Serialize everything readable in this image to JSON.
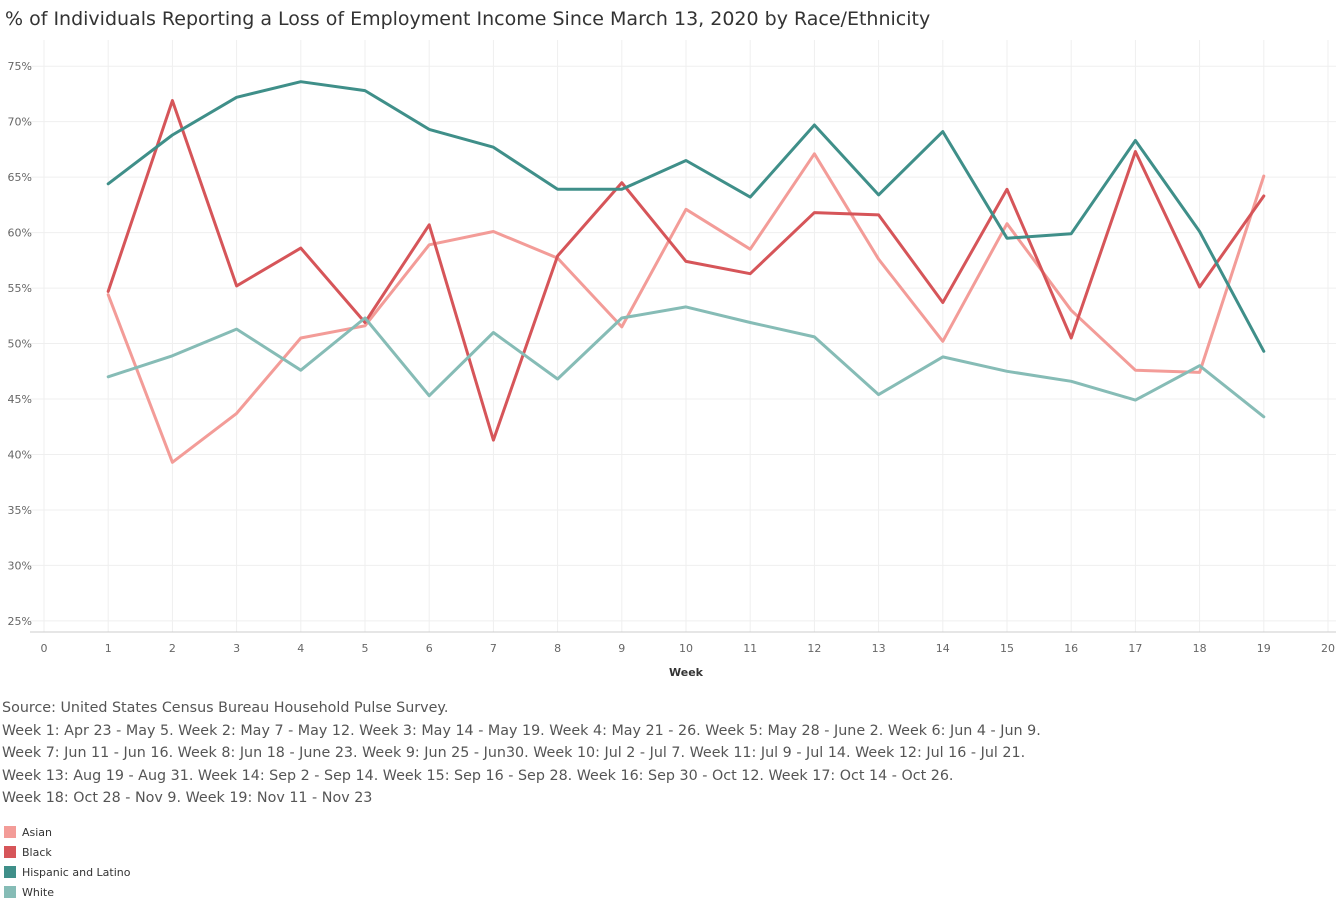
{
  "title": "% of Individuals Reporting a Loss of Employment Income Since March 13, 2020 by Race/Ethnicity",
  "source_lines": [
    "Source: United States Census Bureau Household Pulse Survey.",
    "Week 1: Apr 23 - May 5.  Week 2: May 7 - May 12.  Week 3: May 14 - May 19.  Week 4: May 21 - 26.  Week 5: May 28 - June 2.  Week 6: Jun 4 - Jun 9.",
    "Week 7: Jun 11 - Jun 16.  Week 8: Jun 18  - June 23.  Week 9: Jun 25 - Jun30.  Week 10: Jul 2 - Jul 7.  Week 11: Jul 9 - Jul 14.  Week 12: Jul 16 - Jul 21.",
    "Week 13: Aug 19  - Aug 31.  Week 14: Sep 2 - Sep 14.  Week 15: Sep 16 - Sep 28.  Week  16: Sep 30 - Oct 12.  Week 17: Oct 14 - Oct 26.",
    "Week 18: Oct 28 - Nov 9.  Week 19: Nov 11 - Nov 23"
  ],
  "chart_data": {
    "type": "line",
    "xlabel": "Week",
    "ylabel": "",
    "xlim": [
      0,
      20
    ],
    "ylim": [
      24,
      77
    ],
    "xticks": [
      0,
      1,
      2,
      3,
      4,
      5,
      6,
      7,
      8,
      9,
      10,
      11,
      12,
      13,
      14,
      15,
      16,
      17,
      18,
      19,
      20
    ],
    "yticks": [
      25,
      30,
      35,
      40,
      45,
      50,
      55,
      60,
      65,
      70,
      75
    ],
    "ytick_format": "%",
    "grid": true,
    "legend_position": "bottom-left",
    "x": [
      1,
      2,
      3,
      4,
      5,
      6,
      7,
      8,
      9,
      10,
      11,
      12,
      13,
      14,
      15,
      16,
      17,
      18,
      19
    ],
    "series": [
      {
        "name": "Asian",
        "color": "#f39c98",
        "values": [
          54.4,
          39.3,
          43.7,
          50.5,
          51.6,
          58.9,
          60.1,
          57.7,
          51.5,
          62.1,
          58.5,
          67.1,
          57.6,
          50.2,
          60.8,
          53.0,
          47.6,
          47.4,
          65.1
        ]
      },
      {
        "name": "Black",
        "color": "#d65559",
        "values": [
          54.7,
          71.9,
          55.2,
          58.6,
          51.9,
          60.7,
          41.3,
          57.9,
          64.5,
          57.4,
          56.3,
          61.8,
          61.6,
          53.7,
          63.9,
          50.5,
          67.3,
          55.1,
          63.3
        ]
      },
      {
        "name": "Hispanic and Latino",
        "color": "#3f8f89",
        "values": [
          64.4,
          68.8,
          72.2,
          73.6,
          72.8,
          69.3,
          67.7,
          63.9,
          63.9,
          66.5,
          63.2,
          69.7,
          63.4,
          69.1,
          59.5,
          59.9,
          68.3,
          60.1,
          49.3
        ]
      },
      {
        "name": "White",
        "color": "#86bcb6",
        "values": [
          47.0,
          48.9,
          51.3,
          47.6,
          52.3,
          45.3,
          51.0,
          46.8,
          52.3,
          53.3,
          51.9,
          50.6,
          45.4,
          48.8,
          47.5,
          46.6,
          44.9,
          48.0,
          43.4
        ]
      }
    ]
  },
  "colors": {
    "grid": "#efefef",
    "axis": "#cccccc"
  }
}
